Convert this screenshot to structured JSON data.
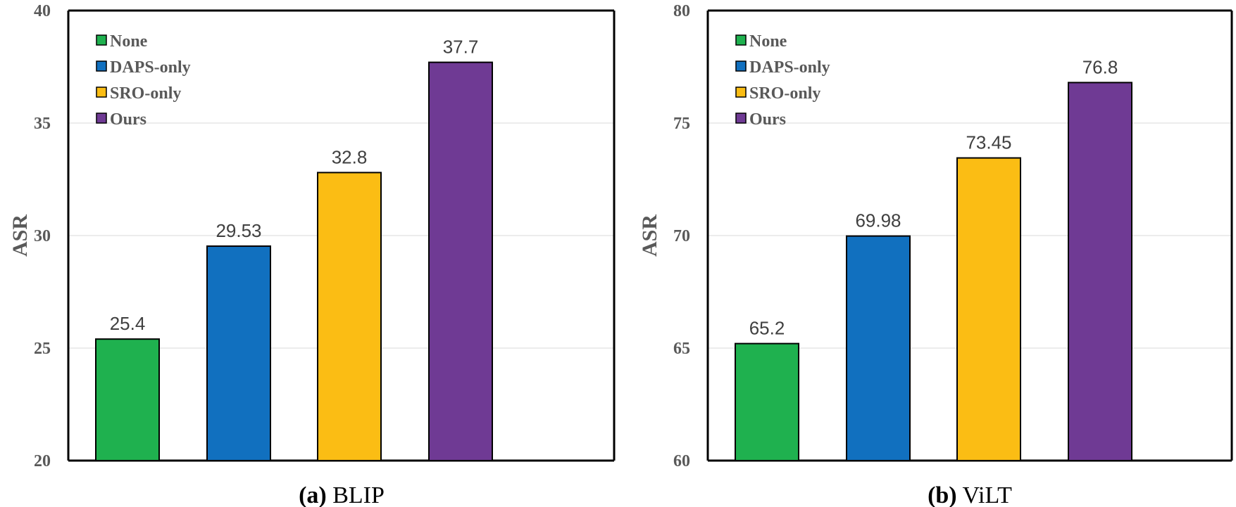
{
  "chart_data": [
    {
      "type": "bar",
      "caption_prefix": "(a)",
      "title": "BLIP",
      "xlabel": "",
      "ylabel": "ASR",
      "ylim": [
        20,
        40
      ],
      "yticks": [
        20,
        25,
        30,
        35,
        40
      ],
      "grid": true,
      "legend_position": "top-left",
      "categories": [
        "None",
        "DAPS-only",
        "SRO-only",
        "Ours"
      ],
      "values": [
        25.4,
        29.53,
        32.8,
        37.7
      ],
      "value_labels": [
        "25.4",
        "29.53",
        "32.8",
        "37.7"
      ],
      "colors": [
        "#1fb14f",
        "#1170bf",
        "#fbbd14",
        "#6f3a94"
      ]
    },
    {
      "type": "bar",
      "caption_prefix": "(b)",
      "title": "ViLT",
      "xlabel": "",
      "ylabel": "ASR",
      "ylim": [
        60,
        80
      ],
      "yticks": [
        60,
        65,
        70,
        75,
        80
      ],
      "grid": true,
      "legend_position": "top-left",
      "categories": [
        "None",
        "DAPS-only",
        "SRO-only",
        "Ours"
      ],
      "values": [
        65.2,
        69.98,
        73.45,
        76.8
      ],
      "value_labels": [
        "65.2",
        "69.98",
        "73.45",
        "76.8"
      ],
      "colors": [
        "#1fb14f",
        "#1170bf",
        "#fbbd14",
        "#6f3a94"
      ]
    }
  ]
}
